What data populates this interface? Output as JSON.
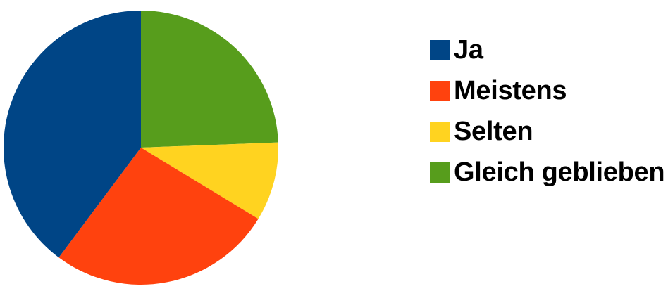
{
  "chart_data": {
    "type": "pie",
    "title": "",
    "start_angle_deg": 0,
    "direction": "clockwise",
    "slices": [
      {
        "label": "Gleich geblieben",
        "value": 24.4,
        "color": "#579d1c"
      },
      {
        "label": "Selten",
        "value": 9.3,
        "color": "#ffd320"
      },
      {
        "label": "Meistens",
        "value": 26.5,
        "color": "#ff420e"
      },
      {
        "label": "Ja",
        "value": 39.8,
        "color": "#004586"
      }
    ],
    "legend": {
      "placement": "right",
      "order": [
        "Ja",
        "Meistens",
        "Selten",
        "Gleich geblieben"
      ]
    }
  }
}
